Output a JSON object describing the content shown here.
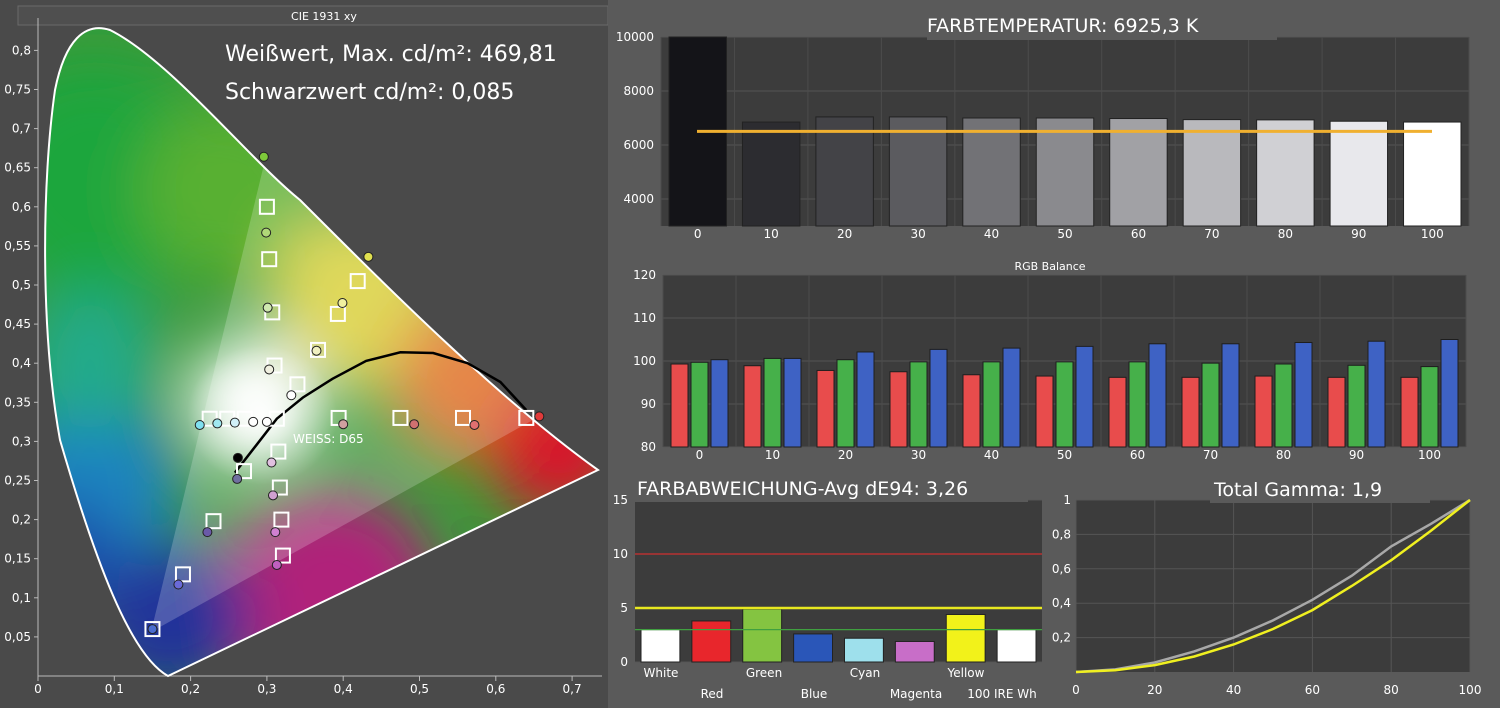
{
  "cie": {
    "title": "CIE 1931 xy",
    "info_white": "Weißwert, Max. cd/m²: 469,81",
    "info_black": "Schwarzwert cd/m²: 0,085",
    "whitepoint_label": "WEISS: D65",
    "x_ticks": [
      "0",
      "0,1",
      "0,2",
      "0,3",
      "0,4",
      "0,5",
      "0,6",
      "0,7"
    ],
    "y_ticks": [
      "0,05",
      "0,1",
      "0,15",
      "0,2",
      "0,25",
      "0,3",
      "0,35",
      "0,4",
      "0,45",
      "0,5",
      "0,55",
      "0,6",
      "0,65",
      "0,7",
      "0,75",
      "0,8"
    ]
  },
  "farbtemp": {
    "title": "FARBTEMPERATUR: 6925,3 K",
    "y_ticks": [
      "4000",
      "6000",
      "8000",
      "10000"
    ]
  },
  "rgb": {
    "title": "RGB Balance",
    "y_ticks": [
      "80",
      "90",
      "100",
      "110",
      "120"
    ]
  },
  "dE": {
    "title": "FARBABWEICHUNG-Avg dE94: 3,26",
    "y_ticks": [
      "0",
      "5",
      "10",
      "15"
    ],
    "labels_top": [
      "White",
      "Green",
      "Cyan",
      "Yellow"
    ],
    "labels_bottom": [
      "Red",
      "Blue",
      "Magenta",
      "100 IRE Wh"
    ]
  },
  "gamma": {
    "title": "Total Gamma: 1,9",
    "y_ticks": [
      "0,2",
      "0,4",
      "0,6",
      "0,8",
      "1"
    ],
    "x_ticks": [
      "0",
      "20",
      "40",
      "60",
      "80",
      "100"
    ]
  },
  "chart_data": [
    {
      "type": "scatter",
      "name": "CIE 1931 xy",
      "xlim": [
        0,
        0.75
      ],
      "ylim": [
        0,
        0.85
      ],
      "targets": [
        {
          "x": 0.15,
          "y": 0.06
        },
        {
          "x": 0.19,
          "y": 0.13
        },
        {
          "x": 0.23,
          "y": 0.198
        },
        {
          "x": 0.27,
          "y": 0.262
        },
        {
          "x": 0.313,
          "y": 0.329
        },
        {
          "x": 0.3,
          "y": 0.6
        },
        {
          "x": 0.303,
          "y": 0.533
        },
        {
          "x": 0.307,
          "y": 0.465
        },
        {
          "x": 0.31,
          "y": 0.397
        },
        {
          "x": 0.64,
          "y": 0.33
        },
        {
          "x": 0.557,
          "y": 0.33
        },
        {
          "x": 0.475,
          "y": 0.33
        },
        {
          "x": 0.394,
          "y": 0.33
        },
        {
          "x": 0.419,
          "y": 0.505
        },
        {
          "x": 0.393,
          "y": 0.463
        },
        {
          "x": 0.367,
          "y": 0.417
        },
        {
          "x": 0.34,
          "y": 0.373
        },
        {
          "x": 0.321,
          "y": 0.154
        },
        {
          "x": 0.319,
          "y": 0.2
        },
        {
          "x": 0.317,
          "y": 0.241
        },
        {
          "x": 0.315,
          "y": 0.287
        },
        {
          "x": 0.225,
          "y": 0.329
        },
        {
          "x": 0.248,
          "y": 0.329
        },
        {
          "x": 0.271,
          "y": 0.329
        }
      ],
      "measured": [
        {
          "x": 0.15,
          "y": 0.06,
          "c": "#4a6cd0"
        },
        {
          "x": 0.184,
          "y": 0.117,
          "c": "#6a6ad8"
        },
        {
          "x": 0.222,
          "y": 0.184,
          "c": "#6a5aa8"
        },
        {
          "x": 0.261,
          "y": 0.252,
          "c": "#7070a0"
        },
        {
          "x": 0.262,
          "y": 0.279,
          "c": "#000000"
        },
        {
          "x": 0.296,
          "y": 0.664,
          "c": "#7ec83a"
        },
        {
          "x": 0.299,
          "y": 0.567,
          "c": "#b0d878"
        },
        {
          "x": 0.301,
          "y": 0.471,
          "c": "#d0e8b0"
        },
        {
          "x": 0.303,
          "y": 0.392,
          "c": "#f0f0e0"
        },
        {
          "x": 0.657,
          "y": 0.332,
          "c": "#e03a3a"
        },
        {
          "x": 0.572,
          "y": 0.321,
          "c": "#e07070"
        },
        {
          "x": 0.493,
          "y": 0.322,
          "c": "#d07070"
        },
        {
          "x": 0.4,
          "y": 0.322,
          "c": "#d0a0a0"
        },
        {
          "x": 0.433,
          "y": 0.536,
          "c": "#e0e050"
        },
        {
          "x": 0.399,
          "y": 0.477,
          "c": "#f0f0a0"
        },
        {
          "x": 0.365,
          "y": 0.416,
          "c": "#f0f0c0"
        },
        {
          "x": 0.332,
          "y": 0.359,
          "c": "#ffffff"
        },
        {
          "x": 0.313,
          "y": 0.142,
          "c": "#c060c0"
        },
        {
          "x": 0.311,
          "y": 0.184,
          "c": "#d080d0"
        },
        {
          "x": 0.308,
          "y": 0.231,
          "c": "#d0a0d0"
        },
        {
          "x": 0.306,
          "y": 0.273,
          "c": "#e0c0e0"
        },
        {
          "x": 0.212,
          "y": 0.321,
          "c": "#80e0f0"
        },
        {
          "x": 0.235,
          "y": 0.323,
          "c": "#a0e8f0"
        },
        {
          "x": 0.258,
          "y": 0.324,
          "c": "#d0f0f8"
        },
        {
          "x": 0.282,
          "y": 0.325,
          "c": "#ffffff"
        },
        {
          "x": 0.3,
          "y": 0.325,
          "c": "#ffffff"
        }
      ],
      "planckian": [
        [
          0.258,
          0.26
        ],
        [
          0.286,
          0.295
        ],
        [
          0.313,
          0.329
        ],
        [
          0.347,
          0.356
        ],
        [
          0.386,
          0.38
        ],
        [
          0.43,
          0.403
        ],
        [
          0.475,
          0.414
        ],
        [
          0.518,
          0.413
        ],
        [
          0.563,
          0.4
        ],
        [
          0.606,
          0.376
        ],
        [
          0.64,
          0.34
        ]
      ]
    },
    {
      "type": "bar",
      "name": "FARBTEMPERATUR",
      "categories": [
        "0",
        "10",
        "20",
        "30",
        "40",
        "50",
        "60",
        "70",
        "80",
        "90",
        "100"
      ],
      "values": [
        10000,
        6850,
        7040,
        7040,
        7000,
        7000,
        6980,
        6940,
        6930,
        6880,
        6850
      ],
      "target": 6504,
      "ylim": [
        3000,
        10000
      ]
    },
    {
      "type": "bar",
      "name": "RGB Balance",
      "categories": [
        "0",
        "10",
        "20",
        "30",
        "40",
        "50",
        "60",
        "70",
        "80",
        "90",
        "100"
      ],
      "series": [
        {
          "values": [
            99.3,
            98.9,
            97.8,
            97.5,
            96.8,
            96.5,
            96.2,
            96.2,
            96.5,
            96.2,
            96.2
          ],
          "color": "#e84c4c"
        },
        {
          "values": [
            99.7,
            100.6,
            100.3,
            99.8,
            99.8,
            99.8,
            99.8,
            99.5,
            99.3,
            99.0,
            98.7
          ],
          "color": "#46b04a"
        },
        {
          "values": [
            100.3,
            100.6,
            102.1,
            102.7,
            103.0,
            103.4,
            104.0,
            104.0,
            104.3,
            104.6,
            105.0
          ],
          "color": "#3e62c4"
        }
      ],
      "ylim": [
        80,
        120
      ]
    },
    {
      "type": "bar",
      "name": "FARBABWEICHUNG",
      "categories": [
        "White",
        "Red",
        "Green",
        "Blue",
        "Cyan",
        "Magenta",
        "Yellow",
        "100 IRE Wh"
      ],
      "values": [
        3.0,
        3.8,
        4.9,
        2.6,
        2.2,
        1.9,
        4.4,
        3.0
      ],
      "colors": [
        "#ffffff",
        "#e8262c",
        "#84c441",
        "#2a56b8",
        "#9ee0ec",
        "#c86ec8",
        "#f2f21a",
        "#ffffff"
      ],
      "thresholds": [
        {
          "value": 10,
          "color": "#d03030"
        },
        {
          "value": 5,
          "color": "#e8e820"
        },
        {
          "value": 3,
          "color": "#40a040"
        }
      ],
      "ylim": [
        0,
        15
      ]
    },
    {
      "type": "line",
      "name": "Total Gamma",
      "x": [
        0,
        10,
        20,
        30,
        40,
        50,
        60,
        70,
        80,
        90,
        100
      ],
      "series": [
        {
          "values": [
            0,
            0.015,
            0.055,
            0.12,
            0.2,
            0.3,
            0.42,
            0.56,
            0.73,
            0.86,
            1.0
          ],
          "color": "#a8a8a8"
        },
        {
          "values": [
            0,
            0.01,
            0.04,
            0.09,
            0.16,
            0.25,
            0.36,
            0.5,
            0.65,
            0.82,
            1.0
          ],
          "color": "#f0f020"
        }
      ],
      "xlim": [
        0,
        100
      ],
      "ylim": [
        0,
        1
      ]
    }
  ]
}
